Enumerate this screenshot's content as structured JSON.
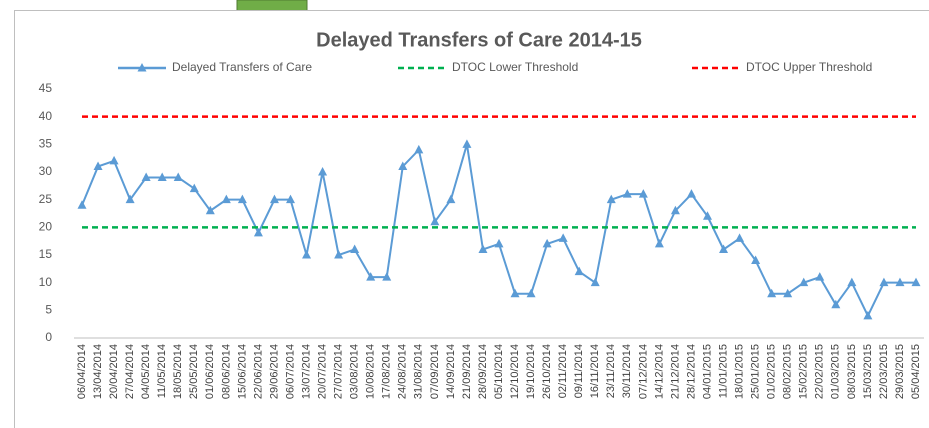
{
  "chart_data": {
    "type": "line",
    "title": "Delayed Transfers of Care 2014-15",
    "categories": [
      "06/04/2014",
      "13/04/2014",
      "20/04/2014",
      "27/04/2014",
      "04/05/2014",
      "11/05/2014",
      "18/05/2014",
      "25/05/2014",
      "01/06/2014",
      "08/06/2014",
      "15/06/2014",
      "22/06/2014",
      "29/06/2014",
      "06/07/2014",
      "13/07/2014",
      "20/07/2014",
      "27/07/2014",
      "03/08/2014",
      "10/08/2014",
      "17/08/2014",
      "24/08/2014",
      "31/08/2014",
      "07/09/2014",
      "14/09/2014",
      "21/09/2014",
      "28/09/2014",
      "05/10/2014",
      "12/10/2014",
      "19/10/2014",
      "26/10/2014",
      "02/11/2014",
      "09/11/2014",
      "16/11/2014",
      "23/11/2014",
      "30/11/2014",
      "07/12/2014",
      "14/12/2014",
      "21/12/2014",
      "28/12/2014",
      "04/01/2015",
      "11/01/2015",
      "18/01/2015",
      "25/01/2015",
      "01/02/2015",
      "08/02/2015",
      "15/02/2015",
      "22/02/2015",
      "01/03/2015",
      "08/03/2015",
      "15/03/2015",
      "22/03/2015",
      "29/03/2015",
      "05/04/2015"
    ],
    "series": [
      {
        "name": "Delayed Transfers of Care",
        "color": "#5b9bd5",
        "dashed": false,
        "marker": "triangle",
        "values": [
          24,
          31,
          32,
          25,
          29,
          29,
          29,
          27,
          23,
          25,
          25,
          19,
          25,
          25,
          15,
          30,
          15,
          16,
          11,
          11,
          31,
          34,
          21,
          25,
          35,
          16,
          17,
          8,
          8,
          17,
          18,
          12,
          10,
          25,
          26,
          26,
          17,
          23,
          26,
          22,
          16,
          18,
          14,
          8,
          8,
          10,
          11,
          6,
          10,
          4,
          10,
          10,
          10
        ]
      },
      {
        "name": "DTOC Lower Threshold",
        "color": "#00b050",
        "dashed": true,
        "marker": null,
        "values": [
          20,
          20,
          20,
          20,
          20,
          20,
          20,
          20,
          20,
          20,
          20,
          20,
          20,
          20,
          20,
          20,
          20,
          20,
          20,
          20,
          20,
          20,
          20,
          20,
          20,
          20,
          20,
          20,
          20,
          20,
          20,
          20,
          20,
          20,
          20,
          20,
          20,
          20,
          20,
          20,
          20,
          20,
          20,
          20,
          20,
          20,
          20,
          20,
          20,
          20,
          20,
          20,
          20
        ]
      },
      {
        "name": "DTOC Upper Threshold",
        "color": "#ff0000",
        "dashed": true,
        "marker": null,
        "values": [
          40,
          40,
          40,
          40,
          40,
          40,
          40,
          40,
          40,
          40,
          40,
          40,
          40,
          40,
          40,
          40,
          40,
          40,
          40,
          40,
          40,
          40,
          40,
          40,
          40,
          40,
          40,
          40,
          40,
          40,
          40,
          40,
          40,
          40,
          40,
          40,
          40,
          40,
          40,
          40,
          40,
          40,
          40,
          40,
          40,
          40,
          40,
          40,
          40,
          40,
          40,
          40,
          40
        ]
      }
    ],
    "ylim": [
      0,
      45
    ],
    "yticks": [
      0,
      5,
      10,
      15,
      20,
      25,
      30,
      35,
      40,
      45
    ],
    "grid": false,
    "legend": "top"
  }
}
